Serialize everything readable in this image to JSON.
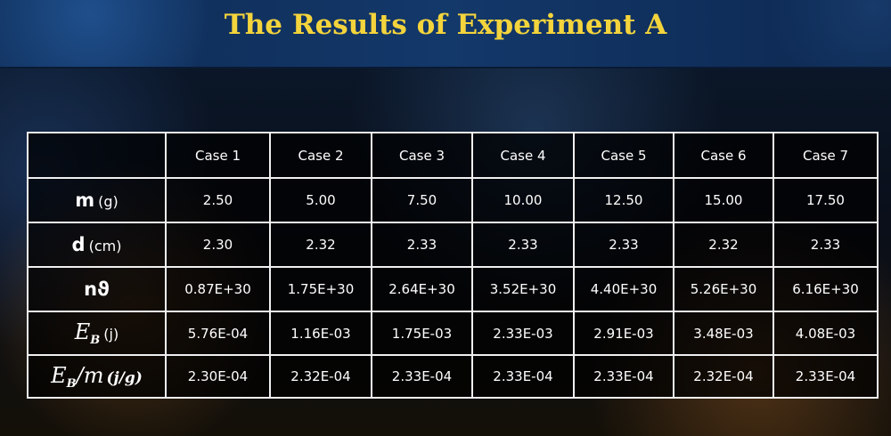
{
  "header": {
    "title": "The Results of Experiment A"
  },
  "table": {
    "columns": [
      "Case 1",
      "Case 2",
      "Case 3",
      "Case 4",
      "Case 5",
      "Case 6",
      "Case 7"
    ],
    "rows": [
      {
        "label": {
          "symbol": "m",
          "unit": "(g)"
        },
        "values": [
          "2.50",
          "5.00",
          "7.50",
          "10.00",
          "12.50",
          "15.00",
          "17.50"
        ]
      },
      {
        "label": {
          "symbol": "d",
          "unit": "(cm)"
        },
        "values": [
          "2.30",
          "2.32",
          "2.33",
          "2.33",
          "2.33",
          "2.32",
          "2.33"
        ]
      },
      {
        "label": {
          "symbol": "nϑ"
        },
        "values": [
          "0.87E+30",
          "1.75E+30",
          "2.64E+30",
          "3.52E+30",
          "4.40E+30",
          "5.26E+30",
          "6.16E+30"
        ]
      },
      {
        "label": {
          "symbol": "E",
          "subscript": "B",
          "unit": "(j)"
        },
        "values": [
          "5.76E-04",
          "1.16E-03",
          "1.75E-03",
          "2.33E-03",
          "2.91E-03",
          "3.48E-03",
          "4.08E-03"
        ]
      },
      {
        "label": {
          "symbol": "E",
          "subscript": "B",
          "divisor": "/m",
          "unit": "(j/g)"
        },
        "values": [
          "2.30E-04",
          "2.32E-04",
          "2.33E-04",
          "2.33E-04",
          "2.33E-04",
          "2.32E-04",
          "2.33E-04"
        ]
      }
    ]
  }
}
